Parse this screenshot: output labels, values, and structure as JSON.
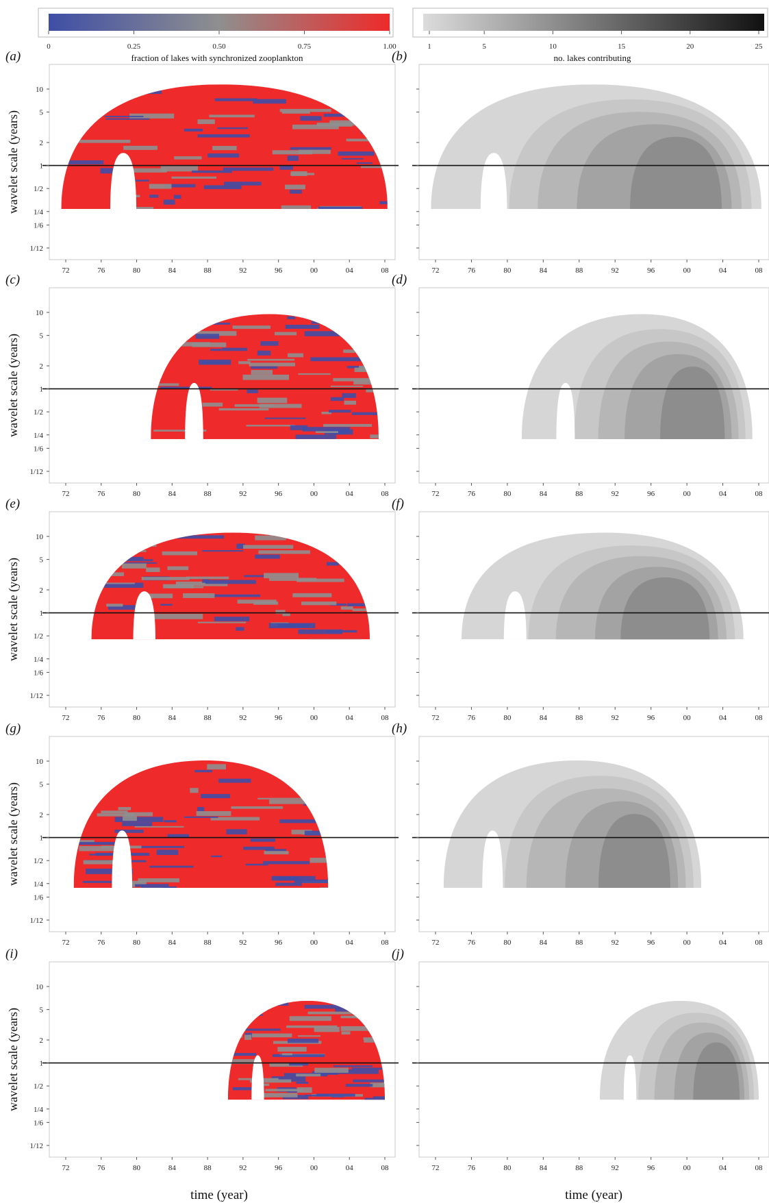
{
  "chart_data": {
    "type": "heatmap",
    "colorbars": {
      "fraction": {
        "label": "fraction of lakes with synchronized zooplankton",
        "ticks": [
          "0",
          "0.25",
          "0.50",
          "0.75",
          "1.00"
        ],
        "colors": [
          "#3f4ea6",
          "#8f8f8f",
          "#ee2a2a"
        ]
      },
      "lakes": {
        "label": "no. lakes contributing",
        "ticks": [
          "1",
          "5",
          "10",
          "15",
          "20",
          "25"
        ],
        "colors": [
          "#dcdcdc",
          "#111111"
        ]
      }
    },
    "xlabel": "time (year)",
    "ylabel": "wavelet scale (years)",
    "x_ticks": [
      "72",
      "76",
      "80",
      "84",
      "88",
      "92",
      "96",
      "00",
      "04",
      "08"
    ],
    "y_ticks": [
      "10",
      "5",
      "2",
      "1",
      "1/2",
      "1/4",
      "1/6",
      "1/12"
    ],
    "reference_line_scale_years": 1,
    "panels": [
      {
        "left": "(a)",
        "right": "(b)",
        "start_year": 1971.5,
        "end_year": 2008.3,
        "peak_year": 1989.5,
        "peak_scale": 11.5,
        "min_scale": 0.27
      },
      {
        "left": "(c)",
        "right": "(d)",
        "start_year": 1981.6,
        "end_year": 2007.3,
        "peak_year": 1995.0,
        "peak_scale": 9.5,
        "min_scale": 0.22
      },
      {
        "left": "(e)",
        "right": "(f)",
        "start_year": 1974.9,
        "end_year": 2006.3,
        "peak_year": 1990.8,
        "peak_scale": 11.2,
        "min_scale": 0.45
      },
      {
        "left": "(g)",
        "right": "(h)",
        "start_year": 1972.9,
        "end_year": 2001.6,
        "peak_year": 1987.8,
        "peak_scale": 10.2,
        "min_scale": 0.22
      },
      {
        "left": "(i)",
        "right": "(j)",
        "start_year": 1990.3,
        "end_year": 2008.0,
        "peak_year": 1999.3,
        "peak_scale": 6.5,
        "min_scale": 0.33
      }
    ]
  }
}
